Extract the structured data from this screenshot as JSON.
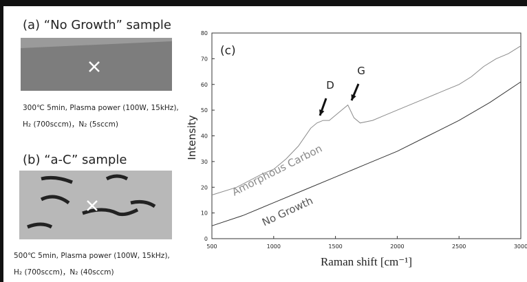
{
  "panels": [
    {
      "title": "(a) “No Growth” sample",
      "caption": [
        "300℃ 5min, Plasma power (100W, 15kHz),",
        "H₂ (700sccm)，N₂ (5sccm)"
      ]
    },
    {
      "title": "(b) “a-C” sample",
      "caption": [
        "500℃ 5min, Plasma power (100W, 15kHz),",
        "H₂ (700sccm)，N₂ (40sccm)"
      ]
    }
  ],
  "chart_data": {
    "type": "line",
    "panel_label": "(c)",
    "x_label": "Raman shift [cm⁻¹]",
    "y_label": "Intensity",
    "xlim": [
      500,
      3000
    ],
    "ylim": [
      0,
      80
    ],
    "xticks": [
      500,
      1000,
      1500,
      2000,
      2500,
      3000
    ],
    "yticks": [
      0,
      10,
      20,
      30,
      40,
      50,
      60,
      70,
      80
    ],
    "annotations": [
      "D",
      "G"
    ],
    "series": [
      {
        "name": "Amorphous Carbon",
        "color": "#8a8a8a",
        "x": [
          500,
          700,
          900,
          1000,
          1100,
          1200,
          1300,
          1350,
          1400,
          1450,
          1500,
          1550,
          1600,
          1650,
          1700,
          1800,
          1900,
          2000,
          2200,
          2400,
          2500,
          2600,
          2700,
          2800,
          2900,
          3000
        ],
        "values": [
          17,
          20,
          25,
          27,
          31,
          36,
          43,
          45,
          46,
          46,
          48,
          50,
          52,
          47,
          45,
          46,
          48,
          50,
          54,
          58,
          60,
          63,
          67,
          70,
          72,
          75
        ]
      },
      {
        "name": "No Growth",
        "color": "#333333",
        "x": [
          500,
          750,
          1000,
          1250,
          1500,
          1750,
          2000,
          2250,
          2500,
          2750,
          3000
        ],
        "values": [
          5,
          9,
          14,
          19,
          24,
          29,
          34,
          40,
          46,
          53,
          61
        ]
      }
    ]
  }
}
